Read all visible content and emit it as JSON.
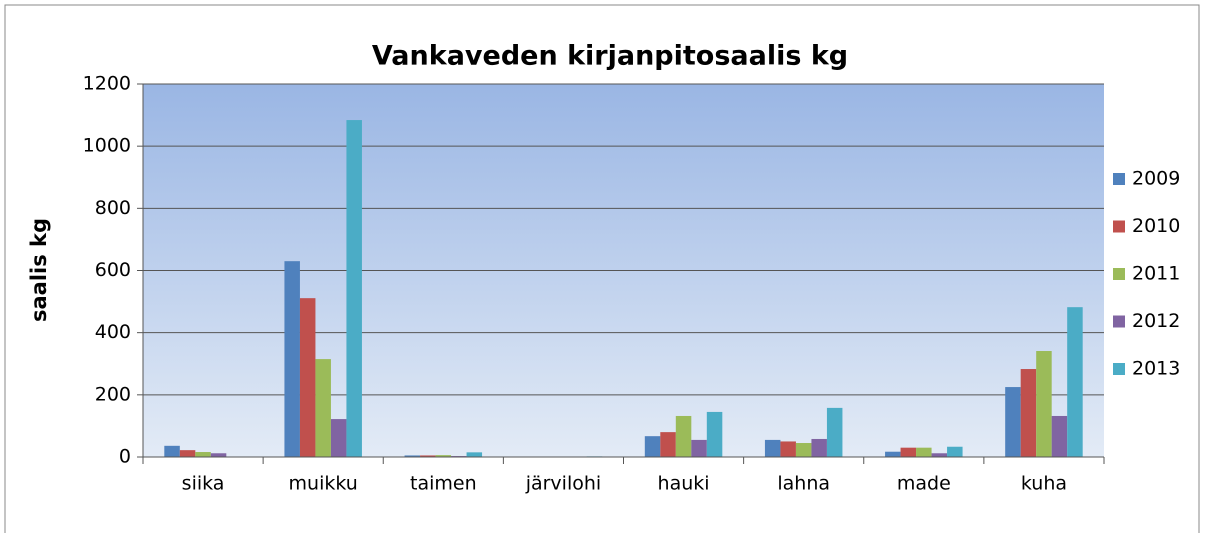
{
  "chart_data": {
    "type": "bar",
    "title": "Vankaveden kirjanpitosaalis kg",
    "y_label": "saalis kg",
    "categories": [
      "siika",
      "muikku",
      "taimen",
      "järvilohi",
      "hauki",
      "lahna",
      "made",
      "kuha"
    ],
    "series": [
      {
        "name": "2009",
        "color": "#4f81bd",
        "values": [
          36,
          630,
          5,
          0,
          67,
          55,
          17,
          225
        ]
      },
      {
        "name": "2010",
        "color": "#c0504d",
        "values": [
          22,
          511,
          5,
          0,
          80,
          50,
          30,
          283
        ]
      },
      {
        "name": "2011",
        "color": "#9bbb59",
        "values": [
          16,
          315,
          6,
          1,
          132,
          45,
          30,
          341
        ]
      },
      {
        "name": "2012",
        "color": "#8064a2",
        "values": [
          12,
          122,
          3,
          0,
          55,
          58,
          12,
          132
        ]
      },
      {
        "name": "2013",
        "color": "#4bacc6",
        "values": [
          0,
          1084,
          15,
          2,
          145,
          158,
          33,
          482
        ]
      }
    ],
    "ylim": [
      0,
      1200
    ],
    "yticks": [
      0,
      200,
      400,
      600,
      800,
      1000,
      1200
    ],
    "grid": true,
    "legend": "right"
  }
}
